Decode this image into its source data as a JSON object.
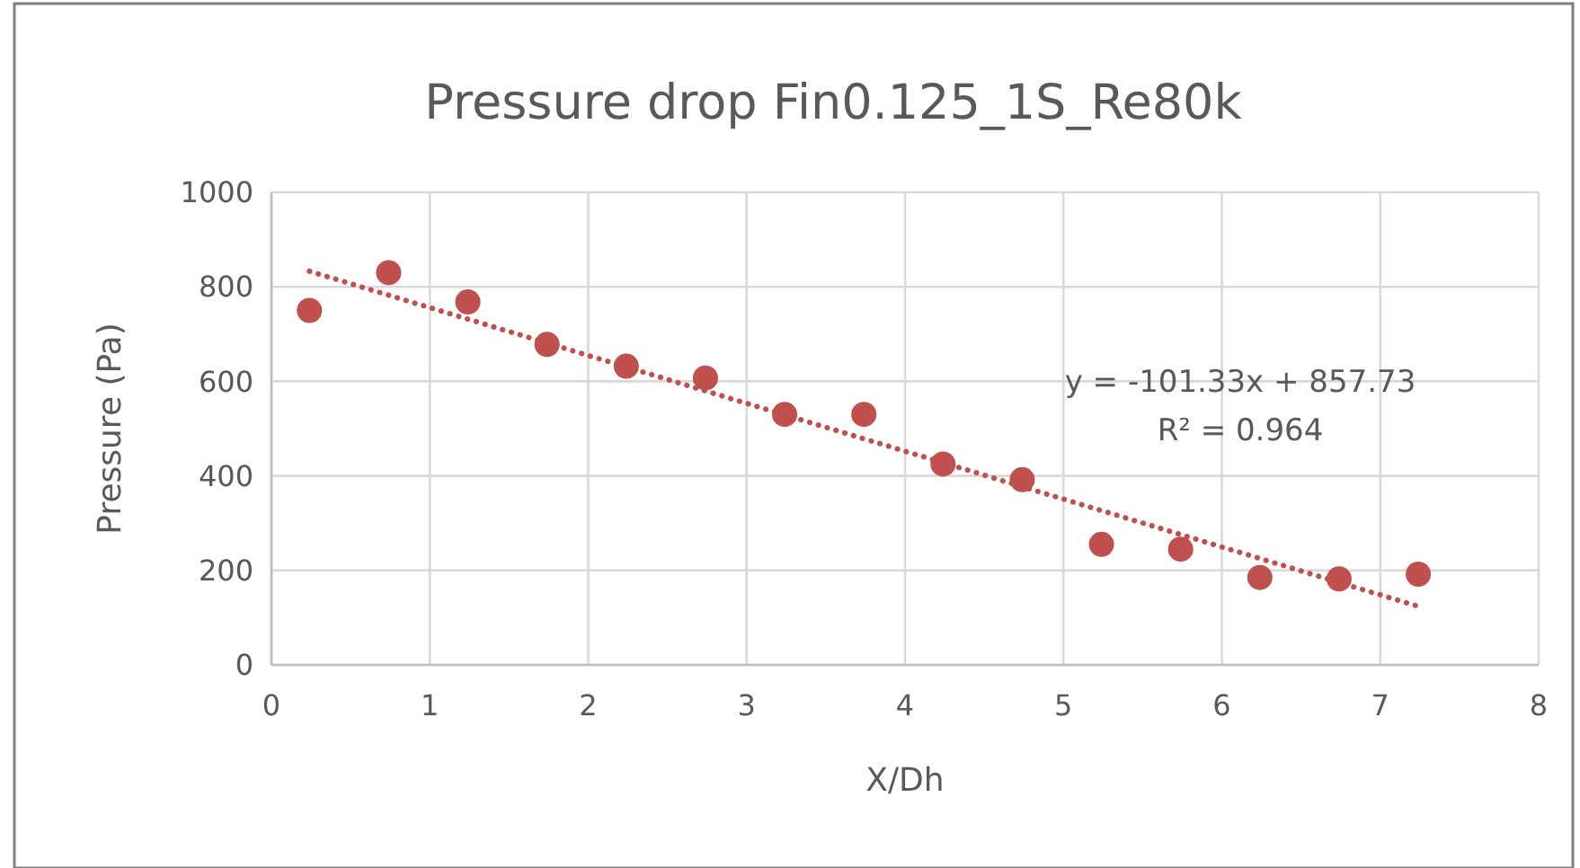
{
  "chart_data": {
    "type": "scatter",
    "title": "Pressure drop Fin0.125_1S_Re80k",
    "xlabel": "X/Dh",
    "ylabel": "Pressure (Pa)",
    "xlim": [
      0,
      8
    ],
    "xticks": [
      0,
      1,
      2,
      3,
      4,
      5,
      6,
      7,
      8
    ],
    "ylim": [
      0,
      1000
    ],
    "yticks": [
      0,
      200,
      400,
      600,
      800,
      1000
    ],
    "grid": true,
    "annotations": [
      "y = -101.33x + 857.73",
      "R² = 0.964"
    ],
    "series": [
      {
        "color": "#c0504d",
        "marker": "circle",
        "x": [
          0.24,
          0.74,
          1.24,
          1.74,
          2.24,
          2.74,
          3.24,
          3.74,
          4.24,
          4.74,
          5.24,
          5.74,
          6.24,
          6.74,
          7.24
        ],
        "values": [
          750,
          830,
          768,
          678,
          632,
          607,
          530,
          530,
          425,
          392,
          255,
          245,
          185,
          182,
          192
        ]
      },
      {
        "type": "line",
        "color": "#c0504d",
        "line_style": "dotted",
        "marker": "none",
        "x": [
          0.24,
          7.24
        ],
        "values": [
          833,
          124
        ]
      }
    ]
  }
}
